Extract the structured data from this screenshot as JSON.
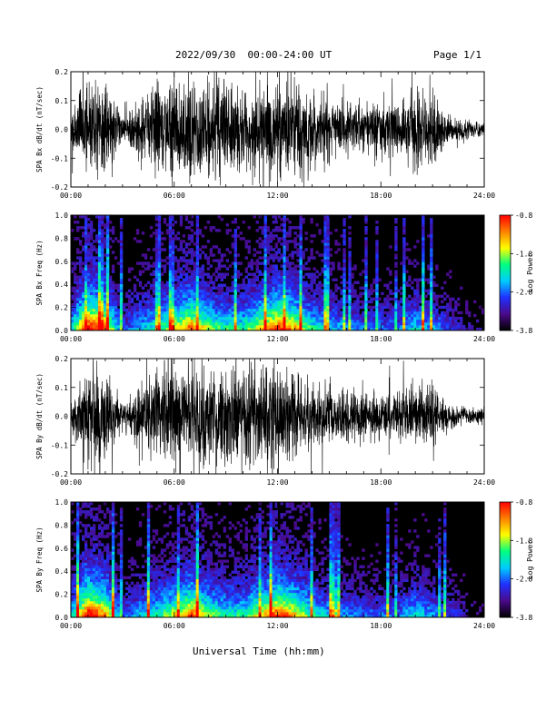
{
  "header": {
    "title": "2022/09/30  00:00-24:00 UT",
    "page": "Page 1/1"
  },
  "x_axis": {
    "title": "Universal Time (hh:mm)",
    "ticks": [
      "00:00",
      "06:00",
      "12:00",
      "18:00",
      "24:00"
    ],
    "range_hours": [
      0,
      24
    ]
  },
  "colorbar": {
    "label": "Log Power",
    "ticks": [
      "-0.8",
      "-1.8",
      "-2.8",
      "-3.8"
    ],
    "range": [
      -3.8,
      -0.8
    ],
    "colors": [
      "#000000",
      "#4a0a8a",
      "#2030ff",
      "#00ccff",
      "#00ff80",
      "#ffff00",
      "#ff8000",
      "#ff0000"
    ]
  },
  "chart_data": [
    {
      "type": "line",
      "ylabel": "SPA Bx dB/dt (nT/sec)",
      "ylim": [
        -0.2,
        0.2
      ],
      "yticks": [
        "0.2",
        "0.1",
        "0.0",
        "-0.1",
        "-0.2"
      ],
      "x_hours": [
        0,
        1,
        2,
        3,
        4,
        5,
        6,
        7,
        8,
        9,
        10,
        11,
        12,
        13,
        14,
        15,
        16,
        17,
        18,
        19,
        20,
        21,
        22,
        23,
        24
      ],
      "amplitude_envelope": [
        0.07,
        0.2,
        0.2,
        0.05,
        0.12,
        0.2,
        0.2,
        0.2,
        0.2,
        0.2,
        0.2,
        0.2,
        0.2,
        0.2,
        0.15,
        0.13,
        0.12,
        0.11,
        0.1,
        0.1,
        0.15,
        0.13,
        0.06,
        0.04,
        0.03
      ],
      "line_color": "#000000"
    },
    {
      "type": "heatmap",
      "ylabel": "SPA Bx Freq (Hz)",
      "ylim": [
        0,
        1.0
      ],
      "yticks": [
        "1.0",
        "0.8",
        "0.6",
        "0.4",
        "0.2",
        "0.0"
      ],
      "x_hours": [
        0,
        1,
        2,
        3,
        4,
        5,
        6,
        7,
        8,
        9,
        10,
        11,
        12,
        13,
        14,
        15,
        16,
        17,
        18,
        19,
        20,
        21,
        22,
        23,
        24
      ],
      "activity": [
        0.4,
        1.0,
        0.8,
        0.25,
        0.4,
        0.5,
        0.65,
        0.85,
        0.6,
        0.5,
        0.5,
        0.7,
        0.9,
        0.75,
        0.5,
        0.4,
        0.35,
        0.3,
        0.3,
        0.3,
        0.45,
        0.35,
        0.25,
        0.15,
        0.1
      ],
      "colorbar_range": [
        -3.8,
        -0.8
      ]
    },
    {
      "type": "line",
      "ylabel": "SPA By dB/dt (nT/sec)",
      "ylim": [
        -0.2,
        0.2
      ],
      "yticks": [
        "0.2",
        "0.1",
        "0.0",
        "-0.1",
        "-0.2"
      ],
      "x_hours": [
        0,
        1,
        2,
        3,
        4,
        5,
        6,
        7,
        8,
        9,
        10,
        11,
        12,
        13,
        14,
        15,
        16,
        17,
        18,
        19,
        20,
        21,
        22,
        23,
        24
      ],
      "amplitude_envelope": [
        0.04,
        0.2,
        0.2,
        0.05,
        0.12,
        0.2,
        0.2,
        0.2,
        0.2,
        0.2,
        0.2,
        0.2,
        0.2,
        0.2,
        0.14,
        0.12,
        0.11,
        0.1,
        0.1,
        0.1,
        0.13,
        0.13,
        0.05,
        0.04,
        0.03
      ],
      "line_color": "#000000"
    },
    {
      "type": "heatmap",
      "ylabel": "SPA By Freq (Hz)",
      "ylim": [
        0,
        1.0
      ],
      "yticks": [
        "1.0",
        "0.8",
        "0.6",
        "0.4",
        "0.2",
        "0.0"
      ],
      "x_hours": [
        0,
        1,
        2,
        3,
        4,
        5,
        6,
        7,
        8,
        9,
        10,
        11,
        12,
        13,
        14,
        15,
        16,
        17,
        18,
        19,
        20,
        21,
        22,
        23,
        24
      ],
      "activity": [
        0.4,
        1.0,
        0.8,
        0.25,
        0.4,
        0.5,
        0.65,
        0.85,
        0.6,
        0.5,
        0.5,
        0.7,
        0.9,
        0.75,
        0.5,
        0.4,
        0.35,
        0.3,
        0.3,
        0.3,
        0.45,
        0.35,
        0.25,
        0.15,
        0.1
      ],
      "colorbar_range": [
        -3.8,
        -0.8
      ]
    }
  ]
}
